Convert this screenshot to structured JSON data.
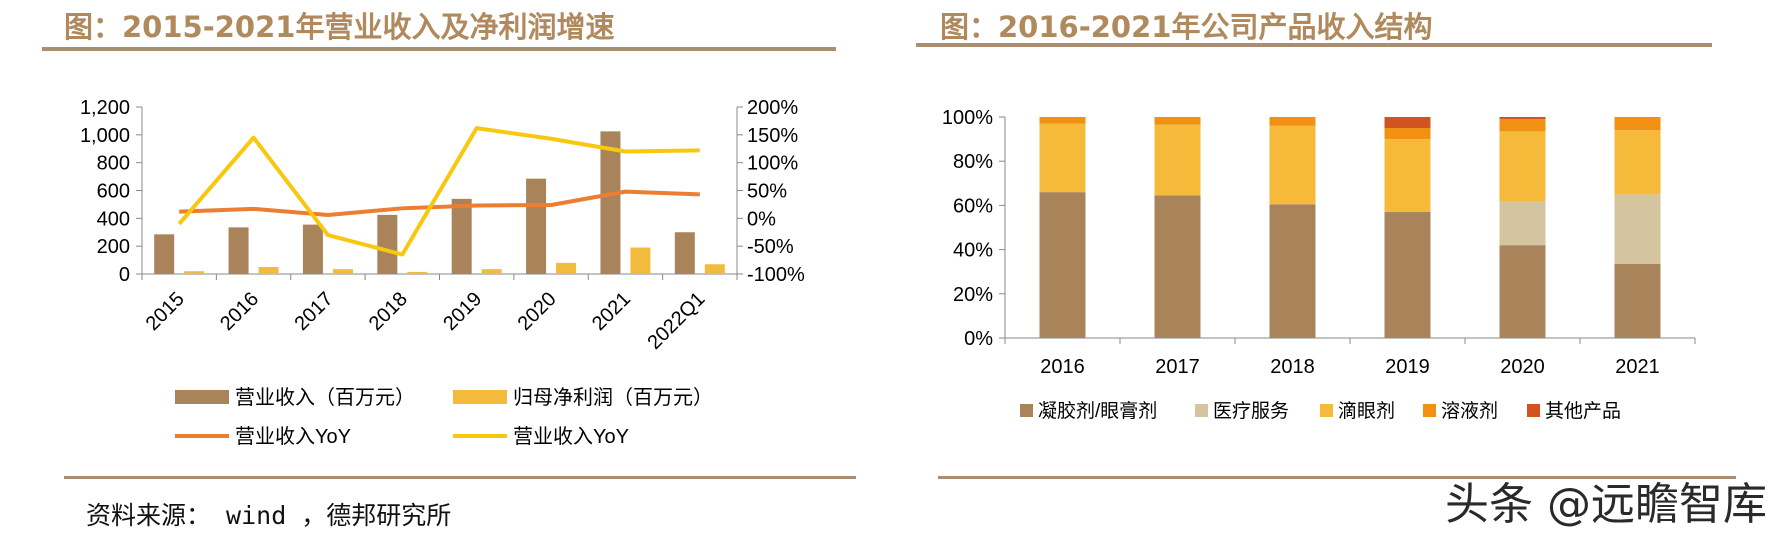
{
  "left_panel": {
    "title": "图：2015-2021年营业收入及净利润增速"
  },
  "right_panel": {
    "title": "图：2016-2021年公司产品收入结构"
  },
  "source_note": "资料来源： wind ，德邦研究所",
  "watermark": "头条 @远瞻智库",
  "colors": {
    "revenue_bar": "#a9845a",
    "profit_bar": "#f2bb3c",
    "revenue_yoy_line": "#ec7d31",
    "second_yoy_line": "#fac70f",
    "gel": "#a9845a",
    "medical": "#d5c4a0",
    "eye_drops": "#f5ba3a",
    "solution": "#f29111",
    "other": "#d2531f"
  },
  "chart_data": [
    {
      "type": "bar",
      "categories": [
        "2015",
        "2016",
        "2017",
        "2018",
        "2019",
        "2020",
        "2021",
        "2022Q1"
      ],
      "series": [
        {
          "name": "营业收入（百万元）",
          "type": "bar",
          "axis": "left",
          "values": [
            285,
            335,
            355,
            425,
            540,
            685,
            1025,
            300
          ]
        },
        {
          "name": "归母净利润（百万元）",
          "type": "bar",
          "axis": "left",
          "values": [
            20,
            50,
            35,
            15,
            35,
            80,
            190,
            70
          ]
        },
        {
          "name": "营业收入YoY",
          "type": "line",
          "axis": "right",
          "values": [
            0.12,
            0.17,
            0.06,
            0.18,
            0.23,
            0.24,
            0.48,
            0.43
          ]
        },
        {
          "name": "营业收入YoY",
          "type": "line",
          "axis": "right",
          "values": [
            -0.1,
            1.45,
            -0.3,
            -0.65,
            1.62,
            1.43,
            1.2,
            1.22
          ]
        }
      ],
      "y_left": {
        "range": [
          0,
          1200
        ],
        "ticks": [
          "0",
          "200",
          "400",
          "600",
          "800",
          "1,000",
          "1,200"
        ]
      },
      "y_right": {
        "range": [
          -1.0,
          2.0
        ],
        "ticks": [
          "-100%",
          "-50%",
          "0%",
          "50%",
          "100%",
          "150%",
          "200%"
        ]
      },
      "legend_position": "bottom"
    },
    {
      "type": "bar",
      "stacked": true,
      "categories": [
        "2016",
        "2017",
        "2018",
        "2019",
        "2020",
        "2021"
      ],
      "series": [
        {
          "name": "凝胶剂/眼膏剂",
          "values": [
            0.66,
            0.645,
            0.605,
            0.57,
            0.42,
            0.335
          ]
        },
        {
          "name": "医疗服务",
          "values": [
            0,
            0,
            0,
            0,
            0.2,
            0.315
          ]
        },
        {
          "name": "滴眼剂",
          "values": [
            0.31,
            0.32,
            0.355,
            0.33,
            0.315,
            0.29
          ]
        },
        {
          "name": "溶液剂",
          "values": [
            0.03,
            0.035,
            0.04,
            0.05,
            0.055,
            0.06
          ]
        },
        {
          "name": "其他产品",
          "values": [
            0,
            0,
            0,
            0.05,
            0.01,
            0
          ]
        }
      ],
      "y": {
        "range": [
          0,
          1
        ],
        "ticks": [
          "0%",
          "20%",
          "40%",
          "60%",
          "80%",
          "100%"
        ]
      },
      "legend_position": "bottom"
    }
  ]
}
